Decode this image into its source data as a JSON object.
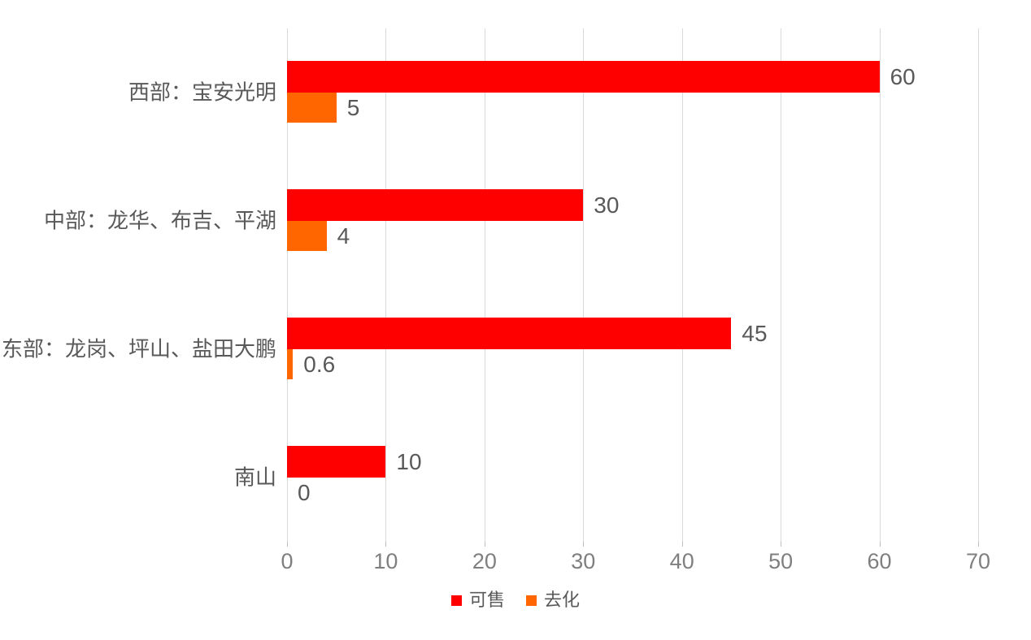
{
  "chart_data": {
    "type": "bar",
    "orientation": "horizontal",
    "title": "",
    "categories": [
      "西部：宝安光明",
      "中部：龙华、布吉、平湖",
      "东部：龙岗、坪山、盐田大鹏",
      "南山"
    ],
    "series": [
      {
        "name": "可售",
        "color": "#FF0000",
        "values": [
          60,
          30,
          45,
          10
        ]
      },
      {
        "name": "去化",
        "color": "#FF6600",
        "values": [
          5,
          4,
          0.6,
          0
        ]
      }
    ],
    "x_ticks": [
      "0",
      "10",
      "20",
      "30",
      "40",
      "50",
      "60",
      "70"
    ],
    "xlim": [
      0,
      70
    ],
    "grid": "vertical",
    "legend_position": "bottom",
    "data_labels_shown": true
  },
  "style": {
    "background": "#FFFFFF",
    "gridline_color": "#D9D9D9",
    "data_label_color": "#595959",
    "axis_label_color": "#7F7F7F",
    "category_label_color": "#595959"
  }
}
